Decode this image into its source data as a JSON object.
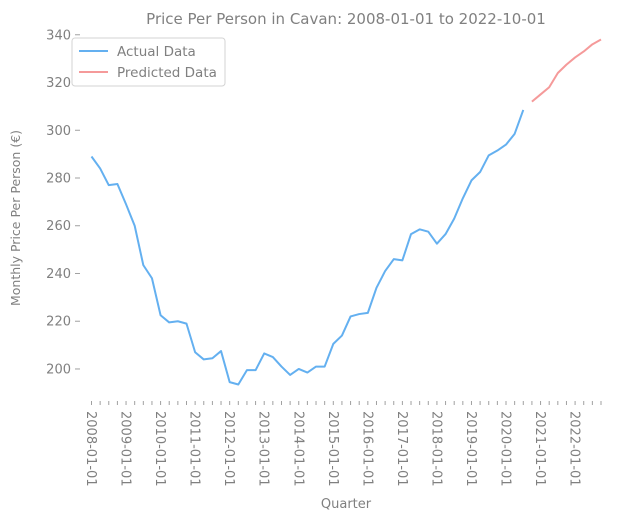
{
  "chart_data": {
    "type": "line",
    "title": "Price Per Person in Cavan: 2008-01-01 to 2022-10-01",
    "xlabel": "Quarter",
    "ylabel": "Monthly Price Per Person (€)",
    "ylim": [
      187,
      342
    ],
    "y_ticks": [
      200,
      220,
      240,
      260,
      280,
      300,
      320,
      340
    ],
    "x_tick_labels": [
      "2008-01-01",
      "2009-01-01",
      "2010-01-01",
      "2011-01-01",
      "2012-01-01",
      "2013-01-01",
      "2014-01-01",
      "2015-01-01",
      "2016-01-01",
      "2017-01-01",
      "2018-01-01",
      "2019-01-01",
      "2020-01-01",
      "2021-01-01",
      "2022-01-01"
    ],
    "legend_position": "top-left",
    "grid": false,
    "series": [
      {
        "name": "Actual Data",
        "color": "#64b0f0",
        "x": [
          "2008-01-01",
          "2008-04-01",
          "2008-07-01",
          "2008-10-01",
          "2009-01-01",
          "2009-04-01",
          "2009-07-01",
          "2009-10-01",
          "2010-01-01",
          "2010-04-01",
          "2010-07-01",
          "2010-10-01",
          "2011-01-01",
          "2011-04-01",
          "2011-07-01",
          "2011-10-01",
          "2012-01-01",
          "2012-04-01",
          "2012-07-01",
          "2012-10-01",
          "2013-01-01",
          "2013-04-01",
          "2013-07-01",
          "2013-10-01",
          "2014-01-01",
          "2014-04-01",
          "2014-07-01",
          "2014-10-01",
          "2015-01-01",
          "2015-04-01",
          "2015-07-01",
          "2015-10-01",
          "2016-01-01",
          "2016-04-01",
          "2016-07-01",
          "2016-10-01",
          "2017-01-01",
          "2017-04-01",
          "2017-07-01",
          "2017-10-01",
          "2018-01-01",
          "2018-04-01",
          "2018-07-01",
          "2018-10-01",
          "2019-01-01",
          "2019-04-01",
          "2019-07-01",
          "2019-10-01",
          "2020-01-01",
          "2020-04-01",
          "2020-07-01"
        ],
        "values": [
          289,
          284,
          277,
          277.5,
          269,
          260,
          243.5,
          238,
          222.5,
          219.5,
          220,
          219,
          207,
          204,
          204.5,
          207.5,
          194.5,
          193.5,
          199.5,
          199.5,
          206.5,
          205,
          201,
          197.5,
          200,
          198.5,
          201,
          201,
          210.5,
          214,
          222,
          223,
          223.5,
          234,
          241,
          246,
          245.5,
          256.5,
          258.5,
          257.5,
          252.5,
          256.5,
          263,
          271.5,
          279,
          282.5,
          289.5,
          291.5,
          294,
          298.5,
          308.5
        ]
      },
      {
        "name": "Predicted Data",
        "color": "#f59a9a",
        "x": [
          "2020-10-01",
          "2021-01-01",
          "2021-04-01",
          "2021-07-01",
          "2021-10-01",
          "2022-01-01",
          "2022-04-01",
          "2022-07-01",
          "2022-10-01"
        ],
        "values": [
          312,
          315,
          318,
          324,
          327.5,
          330.5,
          333,
          336,
          338
        ]
      }
    ]
  }
}
